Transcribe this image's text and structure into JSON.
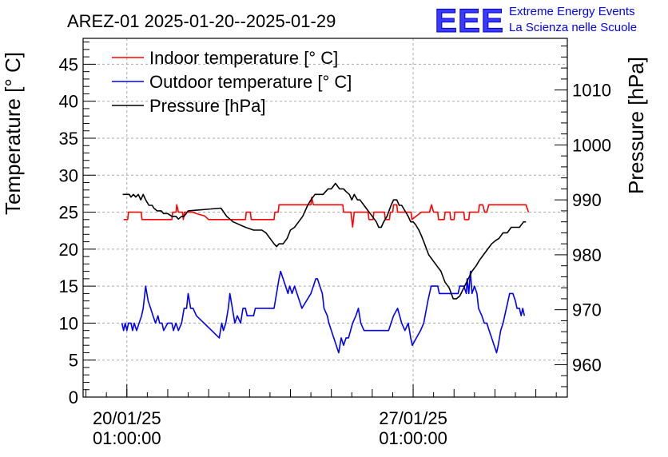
{
  "header": {
    "title": "AREZ-01 2025-01-20--2025-01-29",
    "logo_text": "EEE",
    "brand_line1": "Extreme Energy Events",
    "brand_line2": "La Scienza nelle Scuole"
  },
  "chart_data": {
    "type": "line",
    "title": "AREZ-01 2025-01-20--2025-01-29",
    "x_ticks": [
      {
        "date": "20/01/25",
        "time": "01:00:00",
        "day": 0
      },
      {
        "date": "27/01/25",
        "time": "01:00:00",
        "day": 7
      }
    ],
    "xlim_days": [
      -1.07,
      10.77
    ],
    "ylabel": "Temperature [° C]",
    "ylim": [
      0,
      48.5
    ],
    "y_ticks": [
      0,
      5,
      10,
      15,
      20,
      25,
      30,
      35,
      40,
      45
    ],
    "y2label": "Pressure [hPa]",
    "y2lim": [
      954.1,
      1019.4
    ],
    "y2_ticks": [
      960,
      970,
      980,
      990,
      1000,
      1010
    ],
    "grid": true,
    "legend_position": "top-left",
    "series": [
      {
        "name": "Indoor temperature [° C]",
        "color": "#ff0000",
        "axis": "left",
        "points": [
          [
            -0.08,
            24
          ],
          [
            0.02,
            24
          ],
          [
            0.04,
            25
          ],
          [
            0.35,
            25
          ],
          [
            0.37,
            24
          ],
          [
            1.1,
            24
          ],
          [
            1.12,
            25
          ],
          [
            1.2,
            25
          ],
          [
            1.22,
            26
          ],
          [
            1.26,
            25
          ],
          [
            1.36,
            25
          ],
          [
            1.38,
            24
          ],
          [
            1.41,
            25
          ],
          [
            1.62,
            25
          ],
          [
            1.7,
            24.8
          ],
          [
            1.9,
            24.5
          ],
          [
            2.0,
            24
          ],
          [
            2.9,
            24
          ],
          [
            2.92,
            25
          ],
          [
            3.02,
            25
          ],
          [
            3.04,
            24
          ],
          [
            3.6,
            24
          ],
          [
            3.62,
            25
          ],
          [
            3.7,
            25
          ],
          [
            3.72,
            26
          ],
          [
            4.5,
            26
          ],
          [
            4.52,
            27
          ],
          [
            4.56,
            26
          ],
          [
            5.28,
            26
          ],
          [
            5.3,
            25
          ],
          [
            5.48,
            25
          ],
          [
            5.52,
            23
          ],
          [
            5.56,
            25
          ],
          [
            5.9,
            25
          ],
          [
            5.92,
            24
          ],
          [
            6.02,
            24
          ],
          [
            6.04,
            25
          ],
          [
            6.3,
            25
          ],
          [
            6.32,
            24
          ],
          [
            6.42,
            24
          ],
          [
            6.44,
            25
          ],
          [
            6.5,
            25
          ],
          [
            6.52,
            26
          ],
          [
            6.6,
            26
          ],
          [
            6.62,
            25
          ],
          [
            6.95,
            25
          ],
          [
            6.97,
            24
          ],
          [
            7.2,
            25
          ],
          [
            7.4,
            25
          ],
          [
            7.45,
            26
          ],
          [
            7.5,
            25
          ],
          [
            7.6,
            25
          ],
          [
            7.62,
            24
          ],
          [
            7.76,
            24
          ],
          [
            7.78,
            25
          ],
          [
            7.9,
            25
          ],
          [
            7.92,
            24
          ],
          [
            8.0,
            24
          ],
          [
            8.02,
            25
          ],
          [
            8.24,
            25
          ],
          [
            8.26,
            24
          ],
          [
            8.36,
            24
          ],
          [
            8.38,
            25
          ],
          [
            8.6,
            25
          ],
          [
            8.62,
            26
          ],
          [
            8.7,
            26
          ],
          [
            8.75,
            25
          ],
          [
            8.8,
            25
          ],
          [
            8.85,
            26
          ],
          [
            9.76,
            26
          ],
          [
            9.82,
            25
          ]
        ]
      },
      {
        "name": "Outdoor temperature [° C]",
        "color": "#0000ff",
        "axis": "left",
        "points": [
          [
            -0.12,
            10
          ],
          [
            -0.08,
            9
          ],
          [
            -0.04,
            10
          ],
          [
            0.0,
            9
          ],
          [
            0.04,
            10
          ],
          [
            0.1,
            10
          ],
          [
            0.14,
            9
          ],
          [
            0.18,
            10
          ],
          [
            0.24,
            9
          ],
          [
            0.3,
            10
          ],
          [
            0.36,
            11
          ],
          [
            0.4,
            12
          ],
          [
            0.46,
            15
          ],
          [
            0.52,
            13
          ],
          [
            0.58,
            12
          ],
          [
            0.64,
            11
          ],
          [
            0.7,
            10
          ],
          [
            0.76,
            11
          ],
          [
            0.8,
            10
          ],
          [
            0.86,
            10
          ],
          [
            0.9,
            9
          ],
          [
            1.0,
            10
          ],
          [
            1.1,
            10
          ],
          [
            1.14,
            9
          ],
          [
            1.2,
            10
          ],
          [
            1.26,
            9
          ],
          [
            1.34,
            10
          ],
          [
            1.4,
            12
          ],
          [
            1.46,
            12
          ],
          [
            1.5,
            14
          ],
          [
            1.56,
            12
          ],
          [
            1.62,
            12
          ],
          [
            1.7,
            11
          ],
          [
            2.26,
            8
          ],
          [
            2.32,
            10
          ],
          [
            2.36,
            9
          ],
          [
            2.42,
            10
          ],
          [
            2.48,
            12
          ],
          [
            2.52,
            14
          ],
          [
            2.58,
            12
          ],
          [
            2.64,
            10
          ],
          [
            2.7,
            11
          ],
          [
            2.78,
            10
          ],
          [
            2.84,
            12
          ],
          [
            2.9,
            12
          ],
          [
            2.94,
            11
          ],
          [
            3.1,
            11
          ],
          [
            3.14,
            12
          ],
          [
            3.6,
            12
          ],
          [
            3.66,
            14
          ],
          [
            3.72,
            16
          ],
          [
            3.76,
            17
          ],
          [
            3.82,
            16
          ],
          [
            3.88,
            15
          ],
          [
            3.94,
            14
          ],
          [
            3.98,
            15
          ],
          [
            4.04,
            14
          ],
          [
            4.1,
            15
          ],
          [
            4.16,
            14
          ],
          [
            4.22,
            13
          ],
          [
            4.28,
            12
          ],
          [
            4.5,
            14
          ],
          [
            4.56,
            15
          ],
          [
            4.62,
            16
          ],
          [
            4.66,
            16
          ],
          [
            4.72,
            15
          ],
          [
            4.78,
            14
          ],
          [
            4.82,
            12
          ],
          [
            4.9,
            11
          ],
          [
            4.94,
            10
          ],
          [
            5.0,
            9
          ],
          [
            5.06,
            8
          ],
          [
            5.12,
            7
          ],
          [
            5.18,
            6
          ],
          [
            5.24,
            8
          ],
          [
            5.3,
            7
          ],
          [
            5.36,
            8
          ],
          [
            5.42,
            8
          ],
          [
            5.52,
            10
          ],
          [
            5.6,
            11
          ],
          [
            5.66,
            12
          ],
          [
            5.72,
            10
          ],
          [
            5.8,
            9
          ],
          [
            6.4,
            9
          ],
          [
            6.52,
            11
          ],
          [
            6.62,
            12
          ],
          [
            6.72,
            10
          ],
          [
            6.8,
            9
          ],
          [
            6.88,
            10
          ],
          [
            6.94,
            8
          ],
          [
            6.98,
            7
          ],
          [
            7.08,
            8
          ],
          [
            7.18,
            9
          ],
          [
            7.26,
            10
          ],
          [
            7.36,
            13
          ],
          [
            7.44,
            15
          ],
          [
            7.6,
            15
          ],
          [
            7.64,
            14
          ],
          [
            8.1,
            14
          ],
          [
            8.14,
            15
          ],
          [
            8.24,
            15
          ],
          [
            8.3,
            14
          ],
          [
            8.32,
            16
          ],
          [
            8.36,
            14
          ],
          [
            8.4,
            17
          ],
          [
            8.44,
            14
          ],
          [
            8.5,
            15
          ],
          [
            8.56,
            14
          ],
          [
            8.6,
            12
          ],
          [
            8.68,
            11
          ],
          [
            8.74,
            10
          ],
          [
            8.8,
            10
          ],
          [
            8.86,
            9
          ],
          [
            8.92,
            8
          ],
          [
            8.98,
            7
          ],
          [
            9.04,
            6
          ],
          [
            9.08,
            7
          ],
          [
            9.14,
            9
          ],
          [
            9.2,
            10
          ],
          [
            9.28,
            12
          ],
          [
            9.32,
            13
          ],
          [
            9.36,
            14
          ],
          [
            9.44,
            14
          ],
          [
            9.5,
            13
          ],
          [
            9.54,
            12
          ],
          [
            9.6,
            12
          ],
          [
            9.64,
            11
          ],
          [
            9.68,
            12
          ],
          [
            9.72,
            11
          ]
        ]
      },
      {
        "name": "Pressure [hPa]",
        "color": "#000000",
        "axis": "right",
        "points": [
          [
            -0.1,
            991
          ],
          [
            0.06,
            991
          ],
          [
            0.1,
            990.5
          ],
          [
            0.16,
            991
          ],
          [
            0.22,
            990.5
          ],
          [
            0.28,
            991
          ],
          [
            0.34,
            990
          ],
          [
            0.4,
            991
          ],
          [
            0.46,
            990
          ],
          [
            0.54,
            989
          ],
          [
            0.62,
            989
          ],
          [
            0.66,
            988.5
          ],
          [
            0.74,
            988
          ],
          [
            0.84,
            988
          ],
          [
            0.9,
            987.5
          ],
          [
            1.0,
            987.5
          ],
          [
            1.1,
            987
          ],
          [
            1.2,
            987
          ],
          [
            1.26,
            986.5
          ],
          [
            1.34,
            987
          ],
          [
            1.4,
            987
          ],
          [
            1.5,
            988
          ],
          [
            2.3,
            988.5
          ],
          [
            2.44,
            987
          ],
          [
            2.6,
            986
          ],
          [
            2.9,
            985
          ],
          [
            3.1,
            984.5
          ],
          [
            3.3,
            984.5
          ],
          [
            3.4,
            984
          ],
          [
            3.5,
            983
          ],
          [
            3.6,
            982
          ],
          [
            3.66,
            981.5
          ],
          [
            3.72,
            982
          ],
          [
            3.82,
            982
          ],
          [
            3.92,
            983
          ],
          [
            4.0,
            984.5
          ],
          [
            4.1,
            985
          ],
          [
            4.2,
            986
          ],
          [
            4.3,
            987
          ],
          [
            4.36,
            988
          ],
          [
            4.42,
            989
          ],
          [
            4.5,
            990
          ],
          [
            4.6,
            991
          ],
          [
            4.7,
            991
          ],
          [
            4.8,
            991
          ],
          [
            4.86,
            991.5
          ],
          [
            4.92,
            992
          ],
          [
            5.0,
            992
          ],
          [
            5.1,
            993
          ],
          [
            5.2,
            992
          ],
          [
            5.3,
            992
          ],
          [
            5.36,
            991.5
          ],
          [
            5.44,
            991
          ],
          [
            5.5,
            990
          ],
          [
            5.56,
            991
          ],
          [
            5.64,
            990
          ],
          [
            5.7,
            990
          ],
          [
            5.8,
            989
          ],
          [
            5.9,
            988
          ],
          [
            6.0,
            987
          ],
          [
            6.1,
            986
          ],
          [
            6.16,
            985
          ],
          [
            6.22,
            985
          ],
          [
            6.28,
            986
          ],
          [
            6.36,
            987
          ],
          [
            6.46,
            989
          ],
          [
            6.52,
            990
          ],
          [
            6.6,
            990
          ],
          [
            6.66,
            989
          ],
          [
            6.72,
            989
          ],
          [
            6.8,
            988
          ],
          [
            6.88,
            987
          ],
          [
            6.94,
            986
          ],
          [
            7.0,
            986
          ],
          [
            7.06,
            985.5
          ],
          [
            7.14,
            984.5
          ],
          [
            7.2,
            983.5
          ],
          [
            7.28,
            982
          ],
          [
            7.38,
            980
          ],
          [
            7.48,
            979
          ],
          [
            7.58,
            978
          ],
          [
            7.68,
            977
          ],
          [
            7.78,
            975
          ],
          [
            7.88,
            974
          ],
          [
            7.98,
            972
          ],
          [
            8.06,
            972
          ],
          [
            8.14,
            972.5
          ],
          [
            8.24,
            974
          ],
          [
            8.34,
            975.5
          ],
          [
            8.44,
            977
          ],
          [
            8.54,
            978
          ],
          [
            8.62,
            979
          ],
          [
            8.72,
            980
          ],
          [
            8.82,
            981
          ],
          [
            8.92,
            982
          ],
          [
            9.0,
            982.5
          ],
          [
            9.1,
            983
          ],
          [
            9.2,
            984
          ],
          [
            9.3,
            984
          ],
          [
            9.4,
            985
          ],
          [
            9.5,
            985
          ],
          [
            9.6,
            985
          ],
          [
            9.7,
            986
          ],
          [
            9.76,
            986
          ]
        ]
      }
    ]
  }
}
